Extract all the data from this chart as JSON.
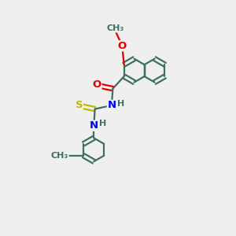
{
  "bg_color": "#efefef",
  "bond_color": "#3d7060",
  "atom_colors": {
    "O": "#e00000",
    "N": "#0000ee",
    "S": "#bbbb00",
    "C": "#3d7060",
    "H": "#3d7060"
  },
  "bond_width": 1.6,
  "doffset": 0.09,
  "font_size": 9.5,
  "small_font": 8.0
}
